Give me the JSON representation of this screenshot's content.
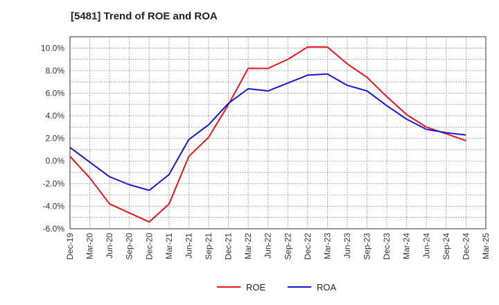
{
  "title": "[5481]  Trend of ROE and ROA",
  "chart_data": {
    "type": "line",
    "title": "[5481]  Trend of ROE and ROA",
    "xlabel": "",
    "ylabel": "",
    "ylim": [
      -6.0,
      11.0
    ],
    "yticks": [
      -6.0,
      -4.0,
      -2.0,
      0.0,
      2.0,
      4.0,
      6.0,
      8.0,
      10.0
    ],
    "y_tick_format": "%",
    "categories": [
      "Dec-19",
      "Mar-20",
      "Jun-20",
      "Sep-20",
      "Dec-20",
      "Mar-21",
      "Jun-21",
      "Sep-21",
      "Dec-21",
      "Mar-22",
      "Jun-22",
      "Sep-22",
      "Dec-22",
      "Mar-23",
      "Jun-23",
      "Sep-23",
      "Dec-23",
      "Mar-24",
      "Jun-24",
      "Sep-24",
      "Dec-24",
      "Mar-25"
    ],
    "grid": true,
    "legend_position": "bottom",
    "series": [
      {
        "name": "ROE",
        "color": "#e8141b",
        "values": [
          0.4,
          -1.5,
          -3.8,
          -4.6,
          -5.4,
          -3.8,
          0.4,
          2.1,
          5.0,
          8.2,
          8.2,
          9.0,
          10.1,
          10.1,
          8.6,
          7.4,
          5.7,
          4.1,
          3.0,
          2.4,
          1.8,
          null
        ]
      },
      {
        "name": "ROA",
        "color": "#1414d4",
        "values": [
          1.2,
          -0.1,
          -1.4,
          -2.1,
          -2.6,
          -1.2,
          1.9,
          3.2,
          5.1,
          6.4,
          6.2,
          6.9,
          7.6,
          7.7,
          6.7,
          6.2,
          4.9,
          3.7,
          2.8,
          2.5,
          2.3,
          null
        ]
      }
    ]
  }
}
